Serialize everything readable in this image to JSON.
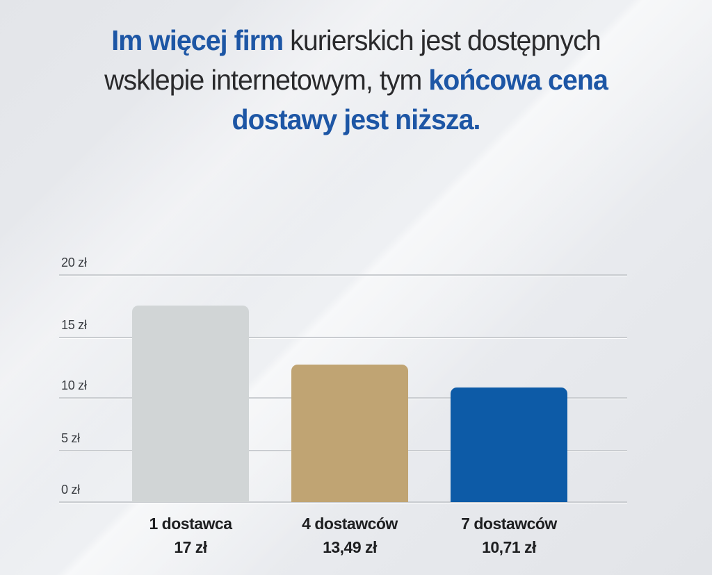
{
  "title": {
    "lines": [
      {
        "accent": "Im więcej firm",
        "rest": " kurierskich jest dostępnych"
      },
      {
        "pre": "wsklepie internetowym, tym ",
        "accent": "końcowa cena"
      },
      {
        "accent": "dostawy jest niższa."
      }
    ],
    "full_text": "Im więcej firm kurierskich jest dostępnych wsklepie internetowym, tym końcowa cena dostawy jest niższa."
  },
  "colors": {
    "accent_blue": "#1d56a5",
    "text_dark": "#2a2a2c",
    "tick_text": "#3b3e43",
    "background": "#e7e9ec",
    "gridline": "#c9ccd0"
  },
  "chart_data": {
    "type": "bar",
    "categories": [
      "1 dostawca",
      "4 dostawców",
      "7 dostawców"
    ],
    "values": [
      17,
      13.49,
      10.71
    ],
    "value_labels": [
      "17 zł",
      "13,49 zł",
      "10,71 zł"
    ],
    "yticks": [
      "20 zł",
      "15 zł",
      "10 zł",
      "5 zł",
      "0 zł"
    ],
    "ylim": [
      0,
      20
    ],
    "unit": "zł",
    "bar_colors": [
      "#d1d5d6",
      "#c0a473",
      "#0d5ba7"
    ],
    "grid": true,
    "legend": false,
    "title": "Im więcej firm kurierskich jest dostępnych wsklepie internetowym, tym końcowa cena dostawy jest niższa."
  }
}
